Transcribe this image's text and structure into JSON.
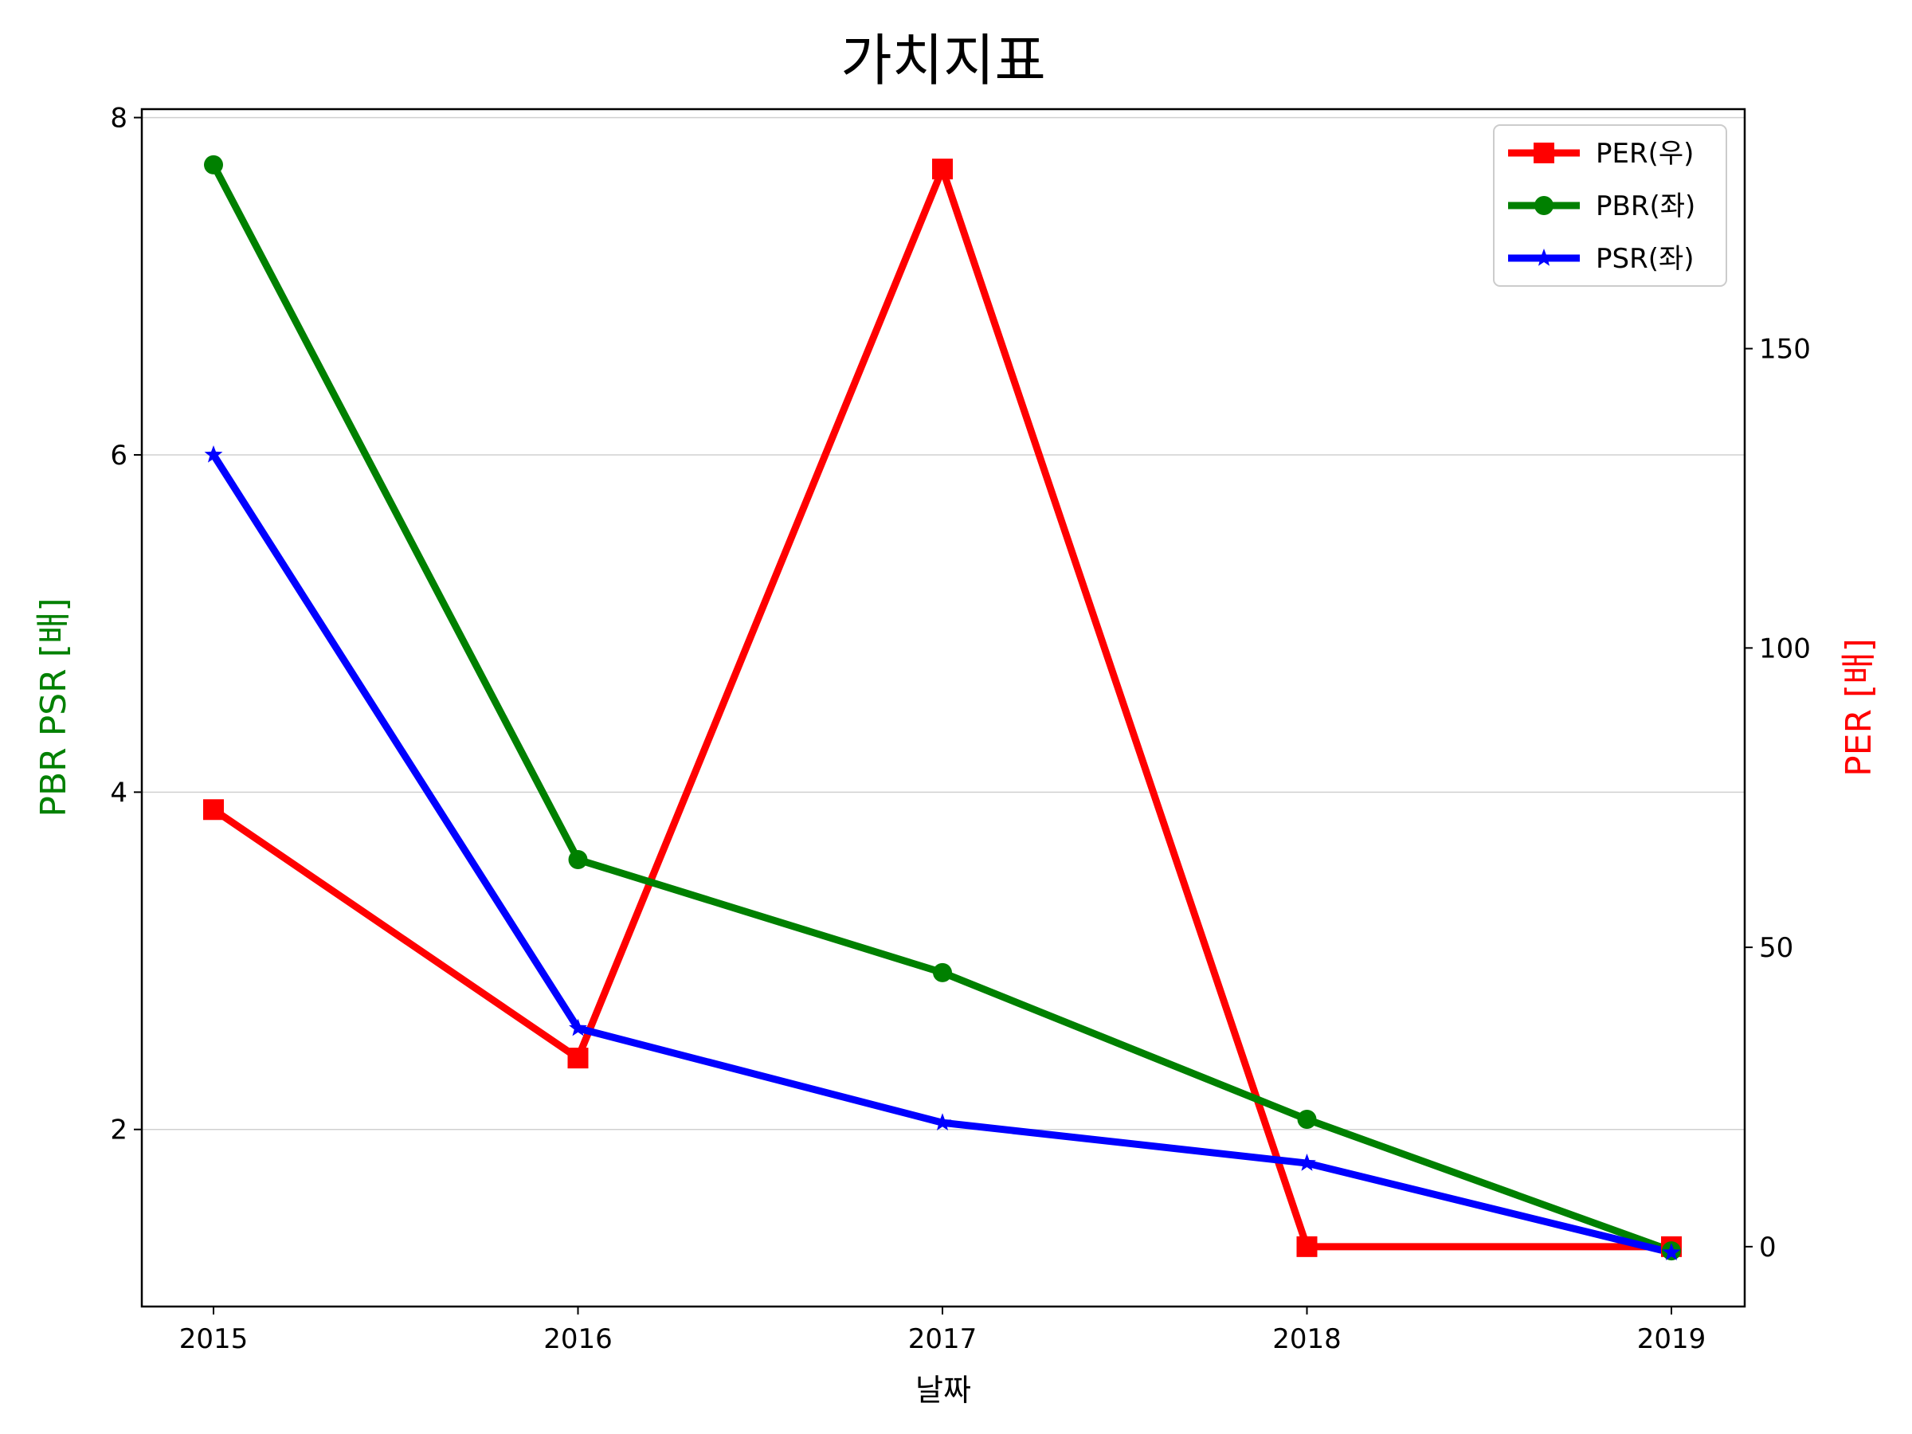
{
  "chart_data": {
    "type": "line",
    "title": "가치지표",
    "xlabel": "날짜",
    "ylabel_left": "PBR PSR [배]",
    "ylabel_right": "PER [배]",
    "categories": [
      "2015",
      "2016",
      "2017",
      "2018",
      "2019"
    ],
    "ylim_left": [
      0.95,
      8.05
    ],
    "yticks_left": [
      2,
      4,
      6,
      8
    ],
    "ylim_right": [
      -10,
      190
    ],
    "yticks_right": [
      0,
      50,
      100,
      150
    ],
    "grid": "horizontal (left axis)",
    "legend_position": "top-right",
    "series": [
      {
        "name": "PER(우)",
        "axis": "right",
        "color": "#ff0000",
        "marker": "square",
        "values": [
          73,
          31.5,
          180,
          0,
          0
        ]
      },
      {
        "name": "PBR(좌)",
        "axis": "left",
        "color": "#008000",
        "marker": "circle",
        "values": [
          7.72,
          3.6,
          2.93,
          2.06,
          1.28
        ]
      },
      {
        "name": "PSR(좌)",
        "axis": "left",
        "color": "#0000ff",
        "marker": "star",
        "values": [
          6.0,
          2.6,
          2.04,
          1.8,
          1.27
        ]
      }
    ]
  }
}
